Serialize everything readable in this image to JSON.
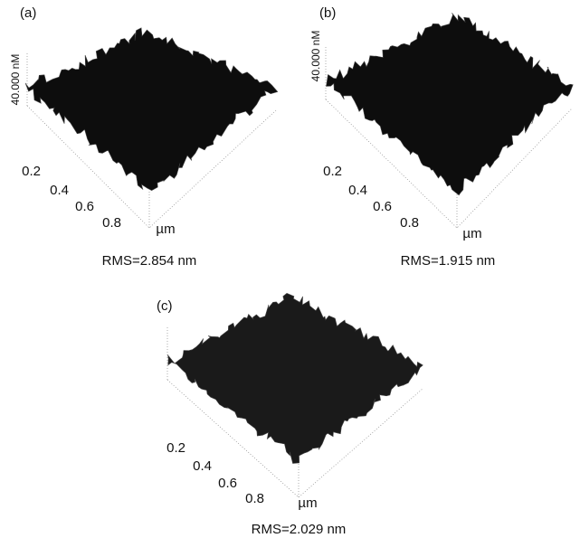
{
  "panels": [
    {
      "label": "(a)",
      "z_label": "40.000 nM",
      "ticks": [
        "0.2",
        "0.4",
        "0.6",
        "0.8"
      ],
      "unit": "µm",
      "caption": "RMS=2.854 nm"
    },
    {
      "label": "(b)",
      "z_label": "40.000 nM",
      "ticks": [
        "0.2",
        "0.4",
        "0.6",
        "0.8"
      ],
      "unit": "µm",
      "caption": "RMS=1.915 nm"
    },
    {
      "label": "(c)",
      "ticks": [
        "0.2",
        "0.4",
        "0.6",
        "0.8"
      ],
      "unit": "µm",
      "caption": "RMS=2.029 nm"
    }
  ]
}
